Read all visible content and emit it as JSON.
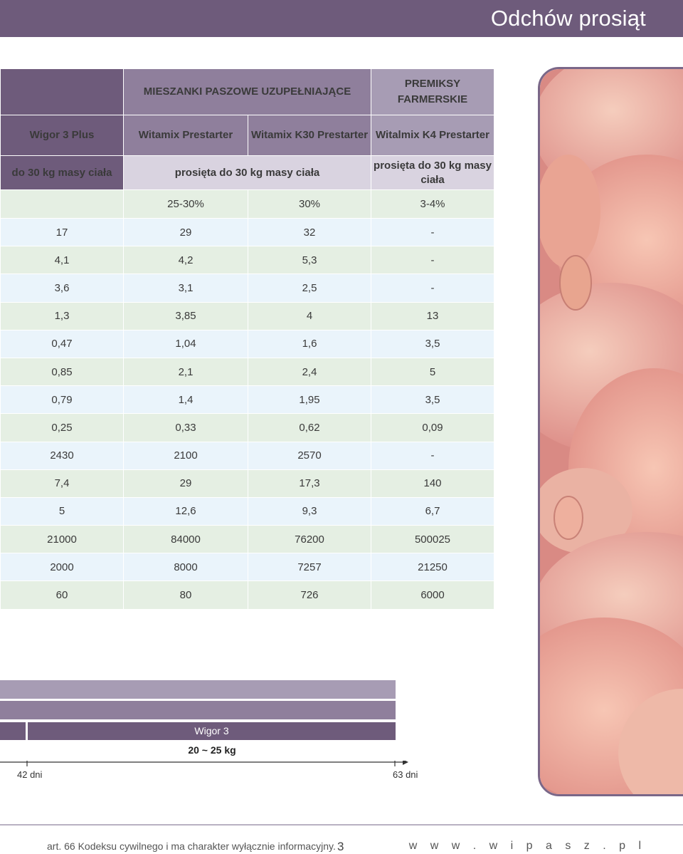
{
  "page_title": "Odchów prosiąt",
  "table": {
    "group_headers": {
      "mixes": "MIESZANKI PASZOWE UZUPEŁNIAJĄCE",
      "premix": "PREMIKSY FARMERSKIE"
    },
    "products": [
      "Wigor 3 Plus",
      "Witamix Prestarter",
      "Witamix K30 Prestarter",
      "Witalmix K4 Prestarter"
    ],
    "usage": {
      "col1": "do 30 kg masy ciała",
      "mixes": "prosięta do 30 kg masy ciała",
      "premix": "prosięta do 30 kg masy ciała"
    },
    "dosage": [
      "",
      "25-30%",
      "30%",
      "3-4%"
    ],
    "rows": [
      [
        "17",
        "29",
        "32",
        "-"
      ],
      [
        "4,1",
        "4,2",
        "5,3",
        "-"
      ],
      [
        "3,6",
        "3,1",
        "2,5",
        "-"
      ],
      [
        "1,3",
        "3,85",
        "4",
        "13"
      ],
      [
        "0,47",
        "1,04",
        "1,6",
        "3,5"
      ],
      [
        "0,85",
        "2,1",
        "2,4",
        "5"
      ],
      [
        "0,79",
        "1,4",
        "1,95",
        "3,5"
      ],
      [
        "0,25",
        "0,33",
        "0,62",
        "0,09"
      ],
      [
        "2430",
        "2100",
        "2570",
        "-"
      ],
      [
        "7,4",
        "29",
        "17,3",
        "140"
      ],
      [
        "5",
        "12,6",
        "9,3",
        "6,7"
      ],
      [
        "21000",
        "84000",
        "76200",
        "500025"
      ],
      [
        "2000",
        "8000",
        "7257",
        "21250"
      ],
      [
        "60",
        "80",
        "726",
        "6000"
      ]
    ]
  },
  "timeline": {
    "bar_label": "Wigor 3",
    "weight_label": "20 ~ 25 kg",
    "start_label": "42 dni",
    "end_label": "63 dni"
  },
  "footer": {
    "note": "art. 66 Kodeksu cywilnego i ma charakter wyłącznie informacyjny.",
    "page_number": "3",
    "website": "w w w . w i p a s z . p l"
  },
  "colors": {
    "header_dark": "#6e5b7b",
    "row_green": "#e5efe3",
    "row_blue": "#eaf4fb"
  }
}
